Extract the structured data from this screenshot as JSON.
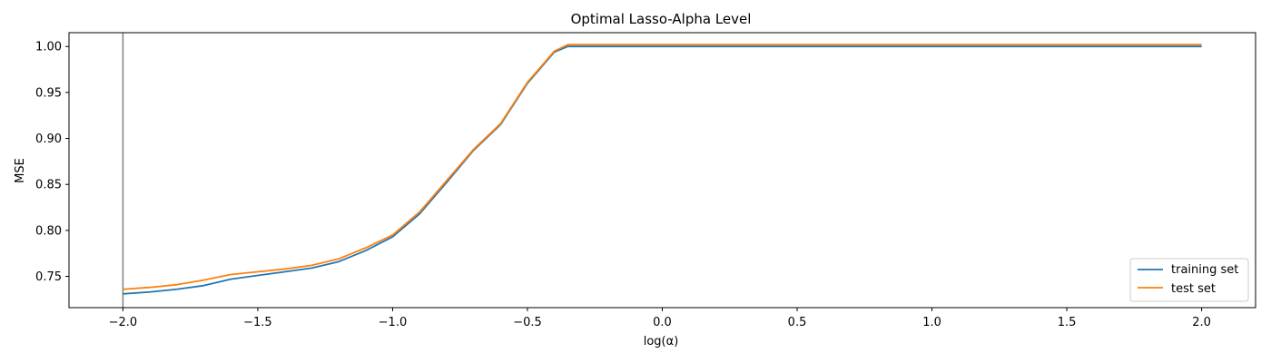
{
  "chart_data": {
    "type": "line",
    "title": "Optimal Lasso-Alpha Level",
    "xlabel": "log(α)",
    "ylabel": "MSE",
    "xlim": [
      -2.2,
      2.2
    ],
    "ylim": [
      0.716,
      1.015
    ],
    "xticks": [
      -2.0,
      -1.5,
      -1.0,
      -0.5,
      0.0,
      0.5,
      1.0,
      1.5,
      2.0
    ],
    "xtick_labels": [
      "−2.0",
      "−1.5",
      "−1.0",
      "−0.5",
      "0.0",
      "0.5",
      "1.0",
      "1.5",
      "2.0"
    ],
    "yticks": [
      0.75,
      0.8,
      0.85,
      0.9,
      0.95,
      1.0
    ],
    "ytick_labels": [
      "0.75",
      "0.80",
      "0.85",
      "0.90",
      "0.95",
      "1.00"
    ],
    "vline_x": -2.0,
    "vline_color": "#808080",
    "legend_position": "lower-right",
    "grid": false,
    "x": [
      -2.0,
      -1.9,
      -1.8,
      -1.7,
      -1.6,
      -1.5,
      -1.4,
      -1.3,
      -1.2,
      -1.1,
      -1.0,
      -0.9,
      -0.8,
      -0.7,
      -0.6,
      -0.5,
      -0.4,
      -0.35,
      0.0,
      0.5,
      1.0,
      1.5,
      2.0
    ],
    "series": [
      {
        "name": "training set",
        "color": "#1f77b4",
        "values": [
          0.731,
          0.733,
          0.736,
          0.74,
          0.747,
          0.751,
          0.755,
          0.759,
          0.766,
          0.778,
          0.793,
          0.818,
          0.852,
          0.887,
          0.915,
          0.96,
          0.994,
          1.0,
          1.0,
          1.0,
          1.0,
          1.0,
          1.0
        ]
      },
      {
        "name": "test set",
        "color": "#ff7f0e",
        "values": [
          0.736,
          0.738,
          0.741,
          0.746,
          0.752,
          0.755,
          0.758,
          0.762,
          0.769,
          0.781,
          0.795,
          0.82,
          0.854,
          0.888,
          0.916,
          0.961,
          0.995,
          1.002,
          1.002,
          1.002,
          1.002,
          1.002,
          1.002
        ]
      }
    ]
  }
}
